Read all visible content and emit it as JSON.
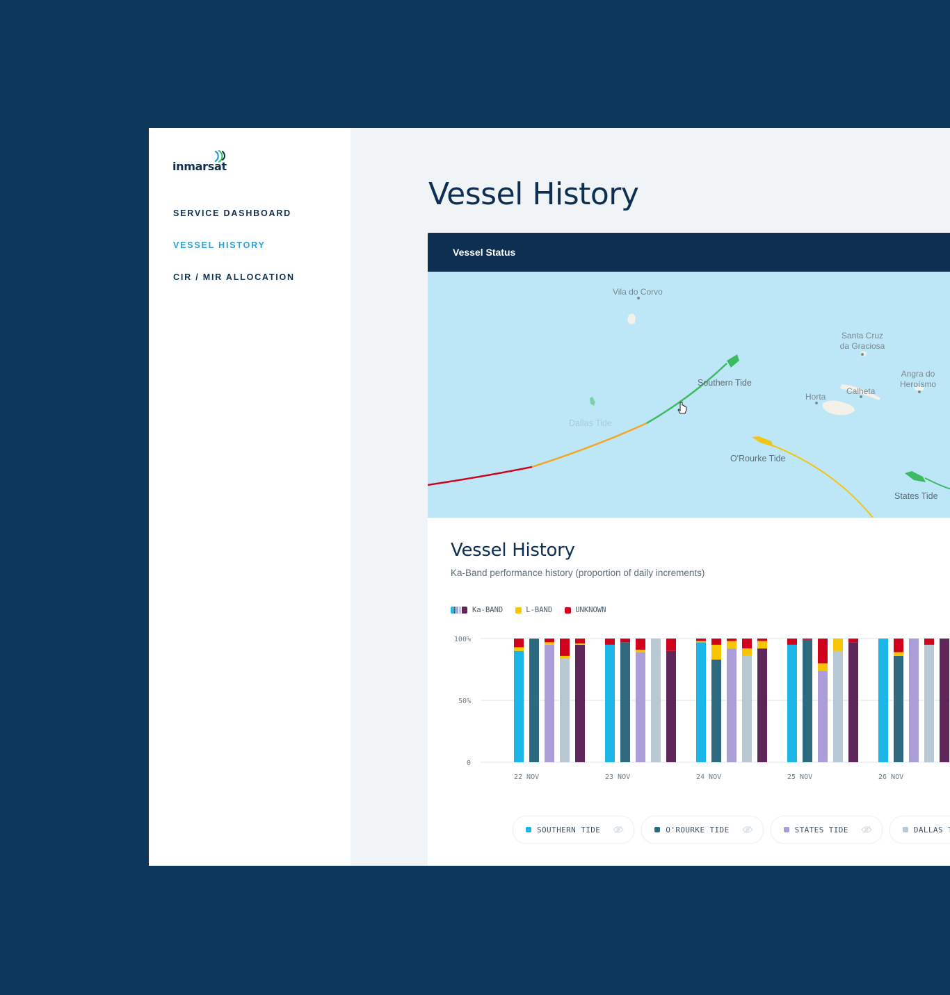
{
  "brand": {
    "name": "inmarsat",
    "logo_icon": "satellite-signal-icon"
  },
  "nav": {
    "items": [
      {
        "label": "SERVICE DASHBOARD",
        "active": false
      },
      {
        "label": "VESSEL HISTORY",
        "active": true
      },
      {
        "label": "CIR / MIR ALLOCATION",
        "active": false
      }
    ]
  },
  "page": {
    "title": "Vessel History"
  },
  "vessel_status": {
    "header": "Vessel Status",
    "places": [
      {
        "name": "Vila do Corvo"
      },
      {
        "name": "Santa Cruz da Graciosa"
      },
      {
        "name": "Angra do Heroísmo"
      },
      {
        "name": "Horta"
      },
      {
        "name": "Calheta"
      }
    ],
    "vessels": [
      {
        "name": "Southern Tide"
      },
      {
        "name": "Dallas Tide"
      },
      {
        "name": "O'Rourke Tide"
      },
      {
        "name": "States Tide"
      }
    ],
    "colors": {
      "sea": "#bde7f7",
      "land": "#f4f1ea",
      "good": "#3dbb63",
      "fair": "#f5a623",
      "poor": "#d0021b",
      "yellow": "#f0c514"
    }
  },
  "history": {
    "title": "Vessel History",
    "subtitle": "Ka-Band performance history (proportion of daily increments)",
    "legend": [
      {
        "label": "Ka-BAND",
        "color": "ka-band-series"
      },
      {
        "label": "L-BAND",
        "color": "#f8c500"
      },
      {
        "label": "UNKNOWN",
        "color": "#d0021b"
      }
    ],
    "vessel_filters": [
      {
        "label": "SOUTHERN TIDE",
        "color": "#1cb5e8",
        "icon": "eye-slash-icon"
      },
      {
        "label": "O'ROURKE TIDE",
        "color": "#2d6a80",
        "icon": "eye-slash-icon"
      },
      {
        "label": "STATES TIDE",
        "color": "#ab9ed8",
        "icon": "eye-slash-icon"
      },
      {
        "label": "DALLAS TIDE",
        "color": "#b8c9d3",
        "icon": "eye-slash-icon"
      }
    ]
  },
  "chart_data": {
    "type": "bar",
    "stacked": true,
    "y_ticks": [
      "100%",
      "50%",
      "0"
    ],
    "ylim": [
      0,
      100
    ],
    "categories": [
      "22 NOV",
      "23 NOV",
      "24 NOV",
      "25 NOV",
      "26 NOV"
    ],
    "series_colors": [
      "#1cb5e8",
      "#2d6a80",
      "#ab9ed8",
      "#b8c9d3",
      "#5e2659"
    ],
    "l_band_color": "#f8c500",
    "unknown_color": "#d0021b",
    "days": [
      {
        "label": "22 NOV",
        "bars": [
          {
            "ka": 90,
            "l": 3,
            "unk": 7
          },
          {
            "ka": 100,
            "l": 0,
            "unk": 0
          },
          {
            "ka": 95,
            "l": 2,
            "unk": 3
          },
          {
            "ka": 84,
            "l": 2,
            "unk": 14
          },
          {
            "ka": 95,
            "l": 1,
            "unk": 4
          }
        ]
      },
      {
        "label": "23 NOV",
        "bars": [
          {
            "ka": 95,
            "l": 0,
            "unk": 5
          },
          {
            "ka": 97,
            "l": 0,
            "unk": 3
          },
          {
            "ka": 89,
            "l": 2,
            "unk": 9
          },
          {
            "ka": 100,
            "l": 0,
            "unk": 0
          },
          {
            "ka": 90,
            "l": 0,
            "unk": 10
          }
        ]
      },
      {
        "label": "24 NOV",
        "bars": [
          {
            "ka": 97,
            "l": 1,
            "unk": 2
          },
          {
            "ka": 83,
            "l": 12,
            "unk": 5
          },
          {
            "ka": 92,
            "l": 6,
            "unk": 2
          },
          {
            "ka": 86,
            "l": 6,
            "unk": 8
          },
          {
            "ka": 92,
            "l": 6,
            "unk": 2
          }
        ]
      },
      {
        "label": "25 NOV",
        "bars": [
          {
            "ka": 95,
            "l": 0,
            "unk": 5
          },
          {
            "ka": 99,
            "l": 0,
            "unk": 1
          },
          {
            "ka": 74,
            "l": 6,
            "unk": 20
          },
          {
            "ka": 90,
            "l": 10,
            "unk": 0
          },
          {
            "ka": 97,
            "l": 0,
            "unk": 3
          }
        ]
      },
      {
        "label": "26 NOV",
        "bars": [
          {
            "ka": 100,
            "l": 0,
            "unk": 0
          },
          {
            "ka": 86,
            "l": 3,
            "unk": 11
          },
          {
            "ka": 100,
            "l": 0,
            "unk": 0
          },
          {
            "ka": 95,
            "l": 0,
            "unk": 5
          },
          {
            "ka": 100,
            "l": 0,
            "unk": 0
          }
        ]
      }
    ]
  }
}
